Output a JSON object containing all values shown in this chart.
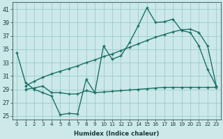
{
  "xlabel": "Humidex (Indice chaleur)",
  "bg_color": "#cce8e8",
  "grid_color": "#99cccc",
  "line_color": "#1a7068",
  "xlim": [
    -0.5,
    23.5
  ],
  "ylim": [
    24.5,
    42.0
  ],
  "xticks": [
    0,
    1,
    2,
    3,
    4,
    5,
    6,
    7,
    8,
    9,
    10,
    11,
    12,
    13,
    14,
    15,
    16,
    17,
    18,
    19,
    20,
    21,
    22,
    23
  ],
  "yticks": [
    25,
    27,
    29,
    31,
    33,
    35,
    37,
    39,
    41
  ],
  "line1_x": [
    0,
    1,
    2,
    3,
    4,
    5,
    6,
    7,
    8,
    9,
    10,
    11,
    12,
    13,
    14,
    15,
    16,
    17,
    18,
    19,
    20,
    21,
    22,
    23
  ],
  "line1_y": [
    34.5,
    30.0,
    29.0,
    28.5,
    28.0,
    25.2,
    25.4,
    25.3,
    30.5,
    28.5,
    35.5,
    33.5,
    34.0,
    36.0,
    38.5,
    41.2,
    39.0,
    39.1,
    39.5,
    37.8,
    37.5,
    35.5,
    32.0,
    29.5
  ],
  "line2_x": [
    1,
    2,
    3,
    4,
    5,
    6,
    7,
    8,
    9,
    10,
    11,
    12,
    13,
    14,
    15,
    16,
    17,
    18,
    19,
    20,
    21,
    22,
    23
  ],
  "line2_y": [
    29.5,
    30.2,
    30.8,
    31.3,
    31.7,
    32.1,
    32.5,
    33.0,
    33.4,
    33.9,
    34.3,
    34.8,
    35.3,
    35.8,
    36.3,
    36.8,
    37.2,
    37.6,
    37.9,
    38.0,
    37.5,
    35.5,
    29.5
  ],
  "line3_x": [
    1,
    2,
    3,
    4,
    5,
    6,
    7,
    8,
    9,
    10,
    11,
    12,
    13,
    14,
    15,
    16,
    17,
    18,
    19,
    20,
    21,
    22,
    23
  ],
  "line3_y": [
    29.0,
    29.2,
    29.5,
    28.5,
    28.5,
    28.3,
    28.3,
    28.8,
    28.5,
    28.6,
    28.7,
    28.8,
    28.9,
    29.0,
    29.1,
    29.2,
    29.3,
    29.3,
    29.3,
    29.3,
    29.3,
    29.3,
    29.3
  ]
}
